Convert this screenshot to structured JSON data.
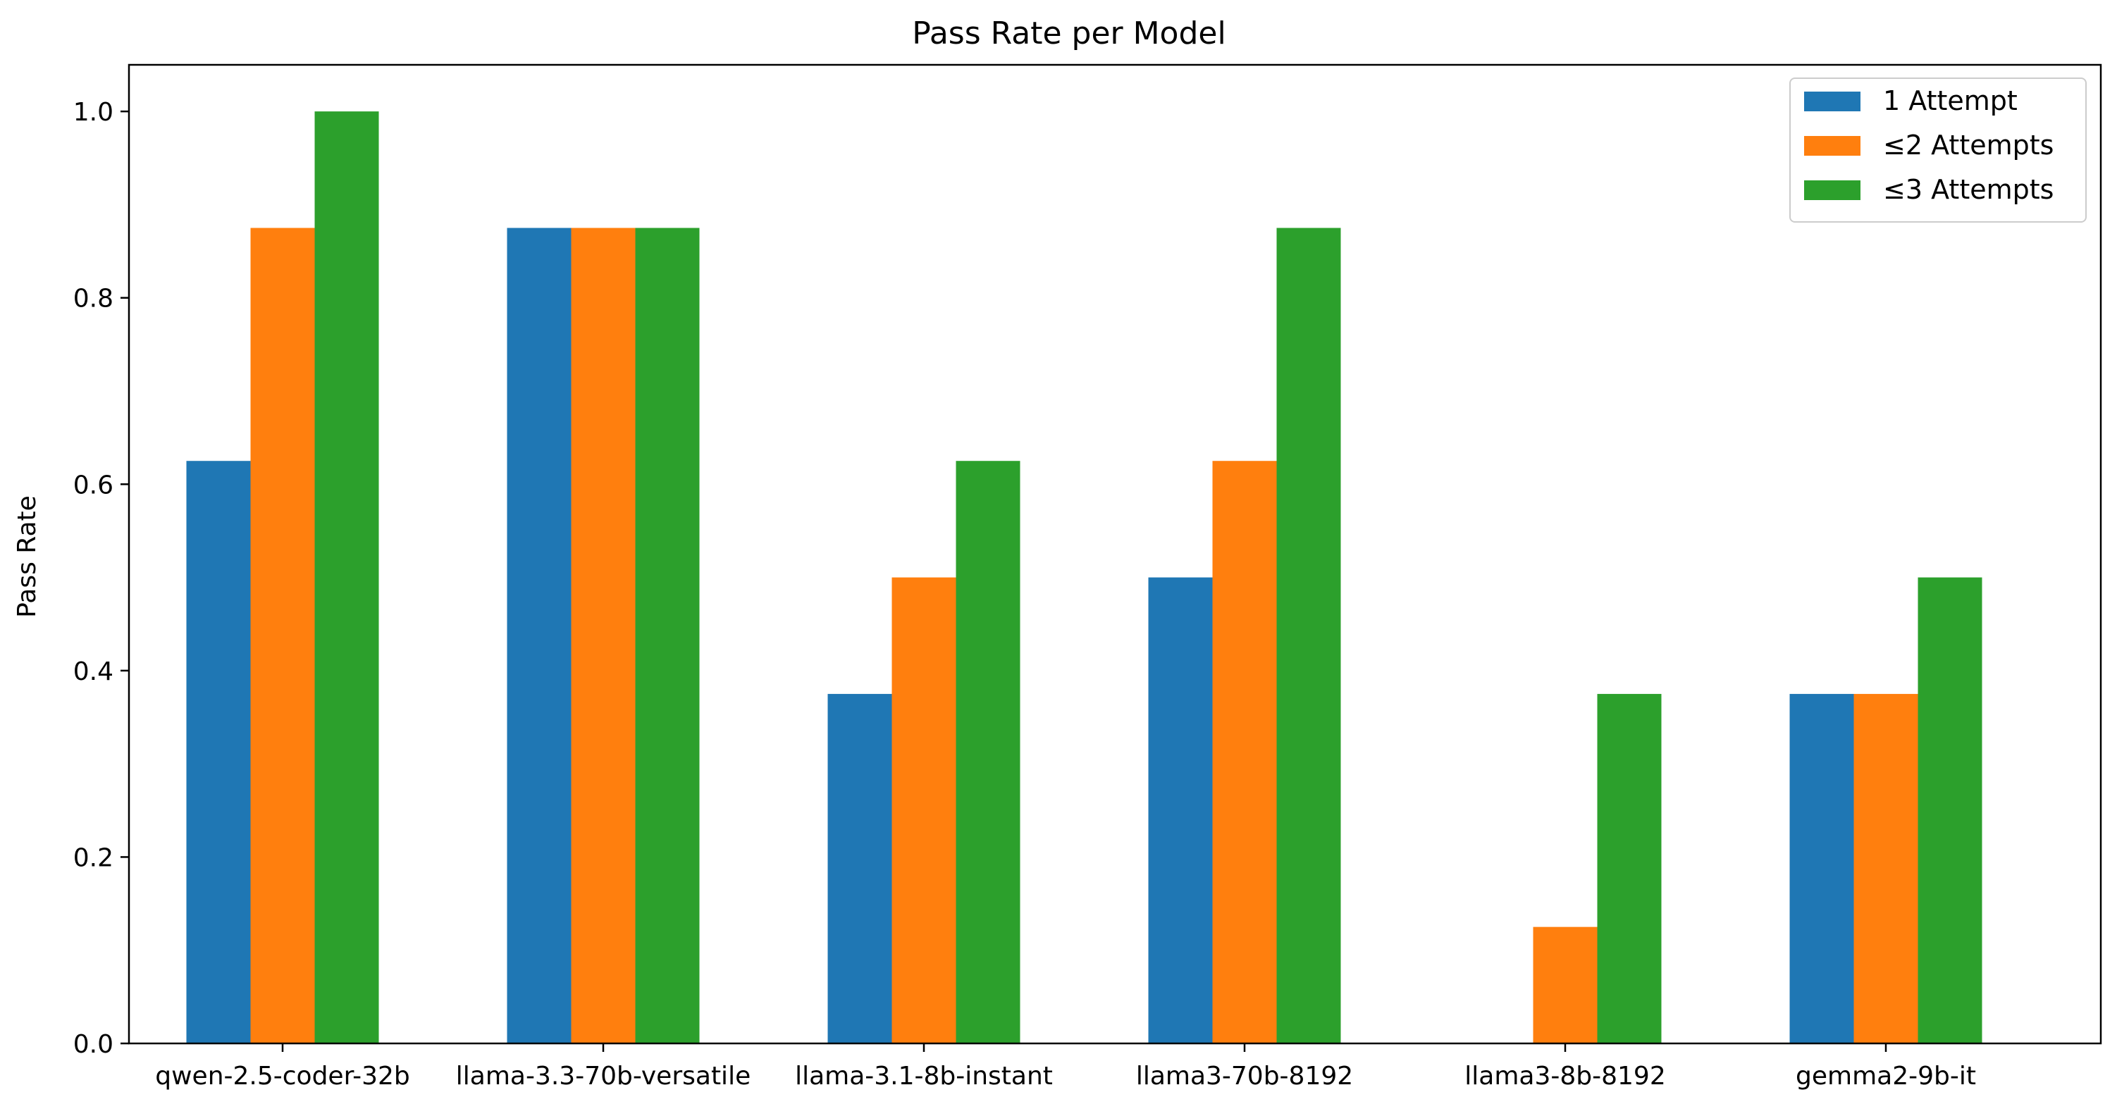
{
  "chart_data": {
    "type": "bar",
    "title": "Pass Rate per Model",
    "xlabel": "",
    "ylabel": "Pass Rate",
    "ylim": [
      0,
      1.05
    ],
    "yticks": [
      "0.0",
      "0.2",
      "0.4",
      "0.6",
      "0.8",
      "1.0"
    ],
    "categories": [
      "qwen-2.5-coder-32b",
      "llama-3.3-70b-versatile",
      "llama-3.1-8b-instant",
      "llama3-70b-8192",
      "llama3-8b-8192",
      "gemma2-9b-it"
    ],
    "series": [
      {
        "name": "1 Attempt",
        "color": "#1f77b4",
        "values": [
          0.625,
          0.875,
          0.375,
          0.5,
          0.0,
          0.375
        ]
      },
      {
        "name": "≤2 Attempts",
        "color": "#ff7f0e",
        "values": [
          0.875,
          0.875,
          0.5,
          0.625,
          0.125,
          0.375
        ]
      },
      {
        "name": "≤3 Attempts",
        "color": "#2ca02c",
        "values": [
          1.0,
          0.875,
          0.625,
          0.875,
          0.375,
          0.5
        ]
      }
    ],
    "grid": false,
    "legend": "top-right"
  }
}
